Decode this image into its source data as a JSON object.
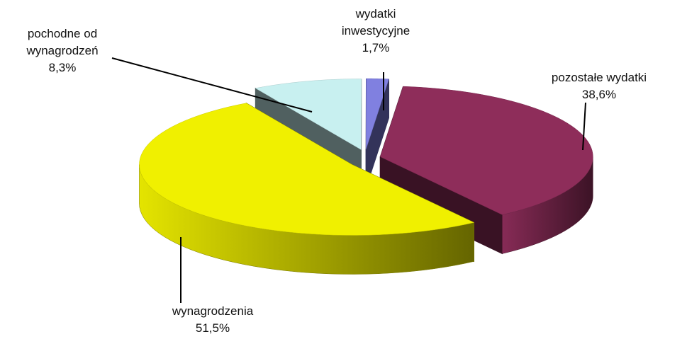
{
  "chart_data": {
    "type": "pie",
    "categories": [
      "wynagrodzenia",
      "pochodne od wynagrodzeń",
      "wydatki inwestycyjne",
      "pozostałe wydatki"
    ],
    "values": [
      51.5,
      8.3,
      1.7,
      38.6
    ],
    "value_labels": [
      "51,5%",
      "8,3%",
      "1,7%",
      "38,6%"
    ],
    "colors": [
      "#f0f000",
      "#c8f0f0",
      "#8080e0",
      "#8e2d5a"
    ]
  }
}
